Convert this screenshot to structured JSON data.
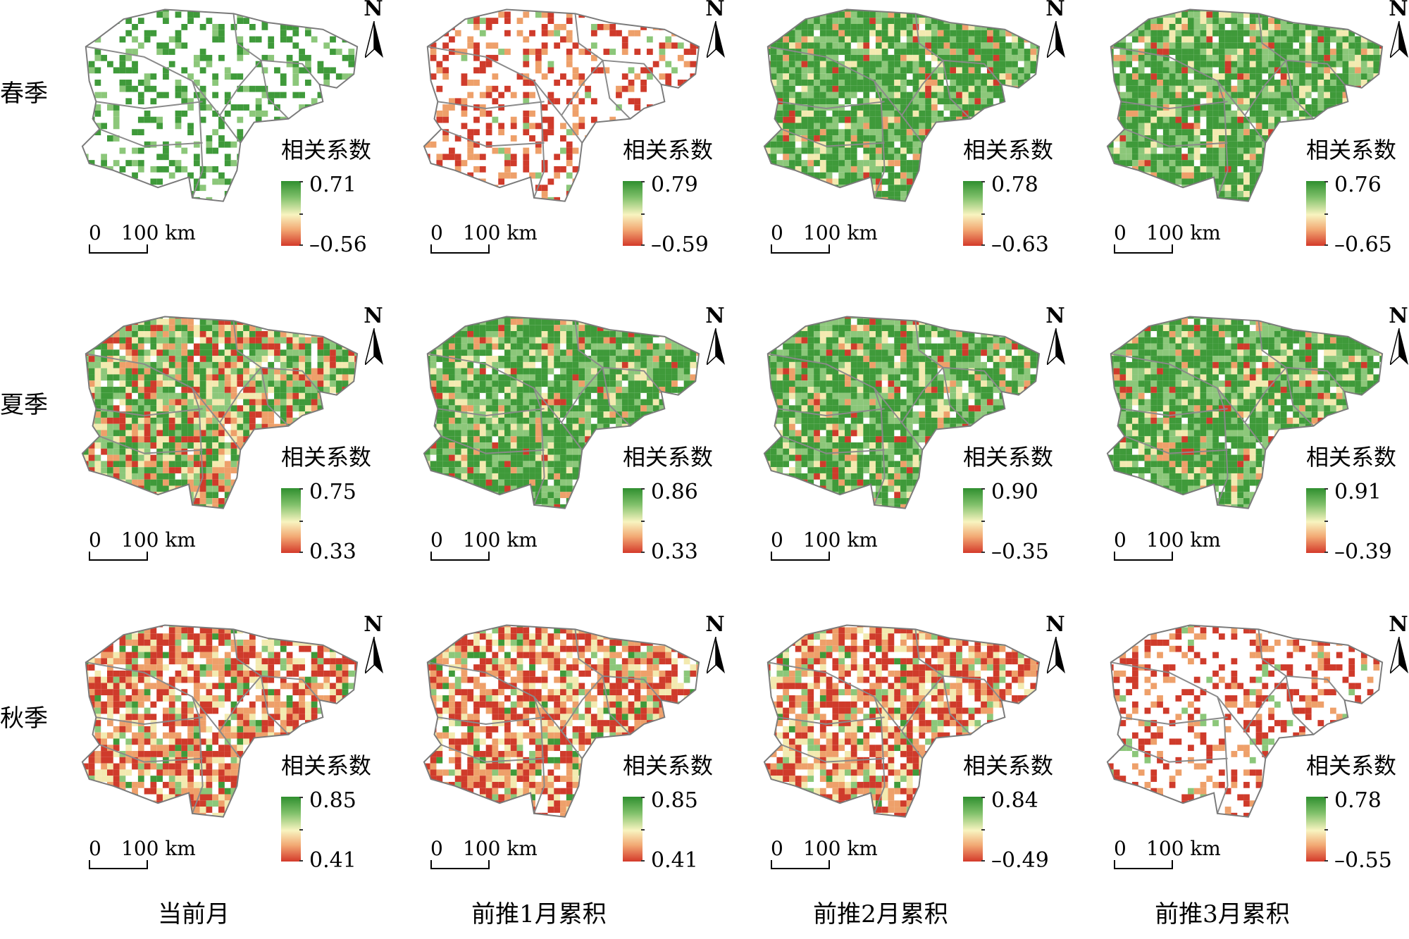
{
  "figure": {
    "row_labels": [
      "春季",
      "夏季",
      "秋季"
    ],
    "column_labels": [
      "当前月",
      "前推1月累积",
      "前推2月累积",
      "前推3月累积"
    ],
    "legend_title": "相关系数",
    "north_label": "N",
    "scale_zero": "0",
    "scale_distance": "100 km"
  },
  "legend_colors": {
    "high": "#2f8f2f",
    "mid": "#f8f4c0",
    "low": "#d43a2a"
  },
  "panels": [
    {
      "season": "春季",
      "lag": "当前月",
      "max": "0.71",
      "min": "–0.56",
      "dominant": "sparse-green"
    },
    {
      "season": "春季",
      "lag": "前推1月累积",
      "max": "0.79",
      "min": "–0.59",
      "dominant": "sparse-red"
    },
    {
      "season": "春季",
      "lag": "前推2月累积",
      "max": "0.78",
      "min": "–0.63",
      "dominant": "green"
    },
    {
      "season": "春季",
      "lag": "前推3月累积",
      "max": "0.76",
      "min": "–0.65",
      "dominant": "green"
    },
    {
      "season": "夏季",
      "lag": "当前月",
      "max": "0.75",
      "min": "0.33",
      "dominant": "mixed"
    },
    {
      "season": "夏季",
      "lag": "前推1月累积",
      "max": "0.86",
      "min": "0.33",
      "dominant": "green"
    },
    {
      "season": "夏季",
      "lag": "前推2月累积",
      "max": "0.90",
      "min": "–0.35",
      "dominant": "green"
    },
    {
      "season": "夏季",
      "lag": "前推3月累积",
      "max": "0.91",
      "min": "–0.39",
      "dominant": "green"
    },
    {
      "season": "秋季",
      "lag": "当前月",
      "max": "0.85",
      "min": "0.41",
      "dominant": "red"
    },
    {
      "season": "秋季",
      "lag": "前推1月累积",
      "max": "0.85",
      "min": "0.41",
      "dominant": "red"
    },
    {
      "season": "秋季",
      "lag": "前推2月累积",
      "max": "0.84",
      "min": "–0.49",
      "dominant": "red"
    },
    {
      "season": "秋季",
      "lag": "前推3月累积",
      "max": "0.78",
      "min": "–0.55",
      "dominant": "sparse-red"
    }
  ]
}
